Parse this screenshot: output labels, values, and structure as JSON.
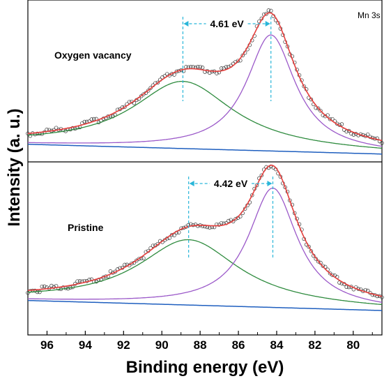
{
  "chart_data": {
    "type": "line",
    "xlabel": "Binding energy (eV)",
    "ylabel": "Intensity (a. u.)",
    "xlim": [
      97,
      78.5
    ],
    "x_reversed": true,
    "xticks": [
      96,
      94,
      92,
      90,
      88,
      86,
      84,
      82,
      80
    ],
    "corner_label": "Mn 3s",
    "colors": {
      "raw": "#333333",
      "envelope": "#e8413c",
      "fit": "#8a7fd8",
      "peak_low": "#9b59c9",
      "peak_high": "#2e8b3e",
      "background": "#1f5fbf",
      "marker": "#29b6d9"
    },
    "panels": [
      {
        "label": "Oxygen vacancy",
        "splitting": "4.61 eV",
        "peaks": [
          {
            "center": 84.3,
            "height": 0.95,
            "width": 1.55
          },
          {
            "center": 88.9,
            "height": 0.55,
            "width": 3.2
          }
        ],
        "markers": [
          88.9,
          84.3
        ],
        "background": [
          [
            97,
            0.03
          ],
          [
            78.5,
            -0.05
          ]
        ]
      },
      {
        "label": "Pristine",
        "splitting": "4.42 eV",
        "peaks": [
          {
            "center": 84.2,
            "height": 0.95,
            "width": 1.55
          },
          {
            "center": 88.6,
            "height": 0.52,
            "width": 3.2
          }
        ],
        "markers": [
          88.6,
          84.2
        ],
        "background": [
          [
            97,
            0.03
          ],
          [
            78.5,
            -0.05
          ]
        ]
      }
    ]
  }
}
